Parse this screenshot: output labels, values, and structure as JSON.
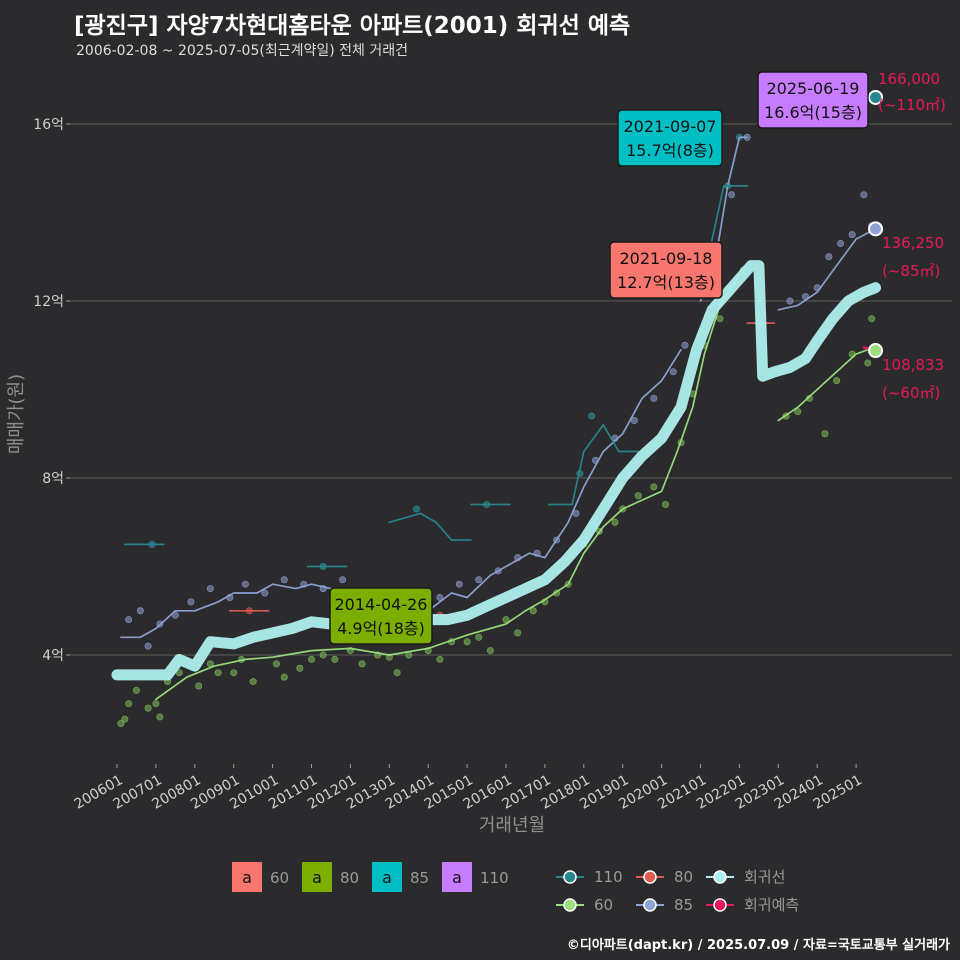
{
  "title": "[광진구] 자양7차현대홈타운 아파트(2001) 회귀선 예측",
  "subtitle": "2006-02-08 ~ 2025-07-05(최근계약일) 전체 거래건",
  "footer": "©디아파트(dapt.kr) / 2025.07.09 / 자료=국토교통부 실거래가",
  "colors": {
    "background": "#2b2b2d",
    "grid": "#5c5c5c",
    "size60": "#f8766d",
    "size80": "#7cae00",
    "size85": "#00bfc4",
    "size110": "#c77cff",
    "line110": "#27868e",
    "line80": "#e05a4f",
    "line60": "#9be07c",
    "line85": "#8fa3d6",
    "regression": "#aeeeee",
    "prediction": "#e8175d"
  },
  "chart_data": {
    "type": "line",
    "xlabel": "거래년월",
    "ylabel": "매매가(원)",
    "x_ticks": [
      "200601",
      "200701",
      "200801",
      "200901",
      "201001",
      "201101",
      "201201",
      "201301",
      "201401",
      "201501",
      "201601",
      "201701",
      "201801",
      "201901",
      "202001",
      "202101",
      "202201",
      "202301",
      "202401",
      "202501"
    ],
    "y_ticks": [
      {
        "value": 4,
        "label": "4억"
      },
      {
        "value": 8,
        "label": "8억"
      },
      {
        "value": 12,
        "label": "12억"
      },
      {
        "value": 16,
        "label": "16억"
      }
    ],
    "xlim": [
      2005.7,
      2026.0
    ],
    "ylim": [
      1.8,
      17.2
    ],
    "y_unit": "억",
    "series": [
      {
        "name": "60",
        "style": "line60",
        "points": [
          [
            2007.0,
            3.0
          ],
          [
            2007.8,
            3.5
          ],
          [
            2008.5,
            3.75
          ],
          [
            2009.3,
            3.9
          ],
          [
            2010.0,
            3.95
          ],
          [
            2011.0,
            4.1
          ],
          [
            2012.0,
            4.15
          ],
          [
            2013.0,
            4.0
          ],
          [
            2014.0,
            4.15
          ],
          [
            2015.0,
            4.45
          ],
          [
            2016.0,
            4.7
          ],
          [
            2016.5,
            5.0
          ],
          [
            2017.0,
            5.25
          ],
          [
            2017.6,
            5.6
          ],
          [
            2018.0,
            6.3
          ],
          [
            2018.5,
            6.9
          ],
          [
            2019.0,
            7.3
          ],
          [
            2019.5,
            7.5
          ],
          [
            2020.0,
            7.7
          ],
          [
            2020.4,
            8.6
          ],
          [
            2020.8,
            9.6
          ],
          [
            2021.1,
            10.8
          ],
          [
            2021.5,
            11.9
          ],
          [
            2022.0,
            12.6
          ],
          [
            2022.2,
            12.6
          ]
        ]
      },
      {
        "name": "60",
        "style": "line60",
        "points": [
          [
            2023.0,
            9.3
          ],
          [
            2023.5,
            9.6
          ],
          [
            2024.0,
            10.0
          ],
          [
            2024.5,
            10.4
          ],
          [
            2025.0,
            10.8
          ],
          [
            2025.3,
            10.9
          ]
        ]
      },
      {
        "name": "85",
        "style": "line85",
        "points": [
          [
            2006.1,
            4.4
          ],
          [
            2006.6,
            4.4
          ],
          [
            2007.0,
            4.6
          ],
          [
            2007.5,
            5.0
          ],
          [
            2008.0,
            5.0
          ],
          [
            2008.6,
            5.2
          ],
          [
            2009.0,
            5.4
          ],
          [
            2009.6,
            5.4
          ],
          [
            2010.0,
            5.6
          ],
          [
            2010.6,
            5.5
          ],
          [
            2011.0,
            5.6
          ],
          [
            2011.5,
            5.5
          ],
          [
            2012.0,
            5.4
          ],
          [
            2012.6,
            5.2
          ],
          [
            2013.0,
            5.0
          ],
          [
            2013.6,
            5.1
          ],
          [
            2014.0,
            5.0
          ],
          [
            2014.6,
            5.4
          ],
          [
            2015.0,
            5.3
          ],
          [
            2015.6,
            5.8
          ],
          [
            2016.0,
            6.0
          ],
          [
            2016.6,
            6.3
          ],
          [
            2017.0,
            6.2
          ],
          [
            2017.6,
            7.0
          ],
          [
            2018.0,
            7.8
          ],
          [
            2018.5,
            8.6
          ],
          [
            2019.0,
            9.0
          ],
          [
            2019.5,
            9.8
          ],
          [
            2020.0,
            10.2
          ],
          [
            2020.5,
            10.9
          ]
        ]
      },
      {
        "name": "85",
        "style": "line85",
        "points": [
          [
            2021.0,
            12.0
          ],
          [
            2021.4,
            13.0
          ],
          [
            2021.7,
            14.6
          ],
          [
            2022.0,
            15.7
          ],
          [
            2022.2,
            15.7
          ]
        ]
      },
      {
        "name": "85",
        "style": "line85",
        "points": [
          [
            2023.0,
            11.8
          ],
          [
            2023.5,
            11.9
          ],
          [
            2024.0,
            12.2
          ],
          [
            2024.5,
            12.8
          ],
          [
            2025.0,
            13.4
          ],
          [
            2025.5,
            13.63
          ]
        ]
      },
      {
        "name": "110",
        "style": "line110",
        "points": [
          [
            2006.2,
            6.5
          ],
          [
            2007.2,
            6.5
          ]
        ]
      },
      {
        "name": "110",
        "style": "line110",
        "points": [
          [
            2010.9,
            6.0
          ],
          [
            2011.9,
            6.0
          ]
        ]
      },
      {
        "name": "110",
        "style": "line110",
        "points": [
          [
            2013.0,
            7.0
          ],
          [
            2013.8,
            7.2
          ],
          [
            2014.2,
            7.0
          ],
          [
            2014.6,
            6.6
          ],
          [
            2015.1,
            6.6
          ]
        ]
      },
      {
        "name": "110",
        "style": "line110",
        "points": [
          [
            2015.1,
            7.4
          ],
          [
            2016.1,
            7.4
          ]
        ]
      },
      {
        "name": "110",
        "style": "line110",
        "points": [
          [
            2017.1,
            7.4
          ],
          [
            2017.7,
            7.4
          ],
          [
            2018.0,
            8.6
          ],
          [
            2018.5,
            9.2
          ],
          [
            2018.9,
            8.6
          ],
          [
            2019.4,
            8.6
          ]
        ]
      },
      {
        "name": "110",
        "style": "line110",
        "points": [
          [
            2021.2,
            13.0
          ],
          [
            2021.6,
            14.6
          ],
          [
            2022.2,
            14.6
          ]
        ]
      },
      {
        "name": "80",
        "style": "line80",
        "points": [
          [
            2008.9,
            5.0
          ],
          [
            2009.9,
            5.0
          ]
        ]
      },
      {
        "name": "80",
        "style": "line80",
        "points": [
          [
            2014.0,
            4.9
          ],
          [
            2014.6,
            4.9
          ]
        ]
      },
      {
        "name": "80",
        "style": "line80",
        "points": [
          [
            2022.2,
            11.5
          ],
          [
            2022.9,
            11.5
          ]
        ]
      },
      {
        "name": "회귀선",
        "style": "regression",
        "points": [
          [
            2006.0,
            3.55
          ],
          [
            2007.3,
            3.55
          ],
          [
            2007.6,
            3.9
          ],
          [
            2008.0,
            3.75
          ],
          [
            2008.4,
            4.3
          ],
          [
            2009.0,
            4.25
          ],
          [
            2009.5,
            4.4
          ],
          [
            2010.0,
            4.5
          ],
          [
            2010.5,
            4.6
          ],
          [
            2011.0,
            4.75
          ],
          [
            2011.5,
            4.7
          ],
          [
            2012.0,
            4.65
          ],
          [
            2012.5,
            4.6
          ],
          [
            2013.0,
            4.6
          ],
          [
            2013.5,
            4.75
          ],
          [
            2014.0,
            4.8
          ],
          [
            2014.5,
            4.8
          ],
          [
            2015.0,
            4.9
          ],
          [
            2015.5,
            5.1
          ],
          [
            2016.0,
            5.3
          ],
          [
            2016.5,
            5.5
          ],
          [
            2017.0,
            5.7
          ],
          [
            2017.5,
            6.1
          ],
          [
            2018.0,
            6.6
          ],
          [
            2018.5,
            7.3
          ],
          [
            2019.0,
            8.0
          ],
          [
            2019.5,
            8.5
          ],
          [
            2020.0,
            8.9
          ],
          [
            2020.5,
            9.6
          ],
          [
            2020.9,
            10.9
          ],
          [
            2021.3,
            11.8
          ],
          [
            2021.7,
            12.2
          ],
          [
            2022.0,
            12.5
          ],
          [
            2022.3,
            12.8
          ],
          [
            2022.5,
            12.8
          ],
          [
            2022.6,
            10.3
          ],
          [
            2022.9,
            10.4
          ],
          [
            2023.3,
            10.5
          ],
          [
            2023.7,
            10.7
          ],
          [
            2024.0,
            11.1
          ],
          [
            2024.4,
            11.6
          ],
          [
            2024.8,
            12.0
          ],
          [
            2025.2,
            12.2
          ],
          [
            2025.5,
            12.3
          ]
        ]
      },
      {
        "name": "회귀예측",
        "style": "prediction",
        "points": [
          [
            2025.2,
            10.95
          ],
          [
            2025.5,
            10.88
          ]
        ]
      }
    ],
    "scatter": {
      "60": [
        [
          2006.1,
          2.45
        ],
        [
          2006.2,
          2.55
        ],
        [
          2006.3,
          2.9
        ],
        [
          2006.5,
          3.2
        ],
        [
          2006.8,
          2.8
        ],
        [
          2007.0,
          2.9
        ],
        [
          2007.1,
          2.6
        ],
        [
          2007.3,
          3.4
        ],
        [
          2007.6,
          3.6
        ],
        [
          2008.1,
          3.3
        ],
        [
          2008.4,
          3.8
        ],
        [
          2008.6,
          3.6
        ],
        [
          2009.0,
          3.6
        ],
        [
          2009.2,
          3.9
        ],
        [
          2009.5,
          3.4
        ],
        [
          2010.1,
          3.8
        ],
        [
          2010.3,
          3.5
        ],
        [
          2010.7,
          3.7
        ],
        [
          2011.0,
          3.9
        ],
        [
          2011.3,
          4.0
        ],
        [
          2011.6,
          3.9
        ],
        [
          2012.0,
          4.1
        ],
        [
          2012.3,
          3.8
        ],
        [
          2012.7,
          4.0
        ],
        [
          2013.0,
          3.95
        ],
        [
          2013.2,
          3.6
        ],
        [
          2013.5,
          4.0
        ],
        [
          2014.0,
          4.1
        ],
        [
          2014.3,
          3.9
        ],
        [
          2014.6,
          4.3
        ],
        [
          2015.0,
          4.3
        ],
        [
          2015.3,
          4.4
        ],
        [
          2015.6,
          4.1
        ],
        [
          2016.0,
          4.8
        ],
        [
          2016.3,
          4.5
        ],
        [
          2016.7,
          5.0
        ],
        [
          2017.0,
          5.2
        ],
        [
          2017.3,
          5.4
        ],
        [
          2017.6,
          5.6
        ],
        [
          2018.0,
          6.5
        ],
        [
          2018.4,
          6.8
        ],
        [
          2018.8,
          7.0
        ],
        [
          2019.0,
          7.3
        ],
        [
          2019.4,
          7.6
        ],
        [
          2019.8,
          7.8
        ],
        [
          2020.1,
          7.4
        ],
        [
          2020.5,
          8.8
        ],
        [
          2020.8,
          9.9
        ],
        [
          2021.1,
          11.0
        ],
        [
          2021.5,
          11.6
        ],
        [
          2021.8,
          12.3
        ],
        [
          2022.1,
          12.7
        ],
        [
          2023.2,
          9.4
        ],
        [
          2023.5,
          9.5
        ],
        [
          2023.8,
          9.8
        ],
        [
          2024.2,
          9.0
        ],
        [
          2024.5,
          10.2
        ],
        [
          2024.9,
          10.8
        ],
        [
          2025.3,
          10.6
        ],
        [
          2025.4,
          11.6
        ]
      ],
      "85": [
        [
          2006.3,
          4.8
        ],
        [
          2006.6,
          5.0
        ],
        [
          2006.8,
          4.2
        ],
        [
          2007.1,
          4.7
        ],
        [
          2007.5,
          4.9
        ],
        [
          2007.9,
          5.2
        ],
        [
          2008.4,
          5.5
        ],
        [
          2008.9,
          5.3
        ],
        [
          2009.3,
          5.6
        ],
        [
          2009.8,
          5.4
        ],
        [
          2010.3,
          5.7
        ],
        [
          2010.8,
          5.6
        ],
        [
          2011.3,
          5.5
        ],
        [
          2011.8,
          5.7
        ],
        [
          2012.3,
          5.1
        ],
        [
          2012.8,
          5.0
        ],
        [
          2013.3,
          5.2
        ],
        [
          2013.8,
          5.0
        ],
        [
          2014.3,
          5.3
        ],
        [
          2014.8,
          5.6
        ],
        [
          2015.3,
          5.7
        ],
        [
          2015.8,
          5.9
        ],
        [
          2016.3,
          6.2
        ],
        [
          2016.8,
          6.3
        ],
        [
          2017.3,
          6.6
        ],
        [
          2017.8,
          7.2
        ],
        [
          2018.3,
          8.4
        ],
        [
          2018.8,
          8.9
        ],
        [
          2019.3,
          9.3
        ],
        [
          2019.8,
          9.8
        ],
        [
          2020.3,
          10.4
        ],
        [
          2020.6,
          11.0
        ],
        [
          2021.4,
          13.1
        ],
        [
          2021.8,
          14.4
        ],
        [
          2022.2,
          15.7
        ],
        [
          2023.3,
          12.0
        ],
        [
          2023.7,
          12.1
        ],
        [
          2024.0,
          12.3
        ],
        [
          2024.3,
          13.0
        ],
        [
          2024.6,
          13.3
        ],
        [
          2024.9,
          13.5
        ],
        [
          2025.2,
          14.4
        ],
        [
          2025.4,
          13.7
        ]
      ],
      "110": [
        [
          2006.9,
          6.5
        ],
        [
          2011.3,
          6.0
        ],
        [
          2013.7,
          7.3
        ],
        [
          2015.5,
          7.4
        ],
        [
          2017.9,
          8.1
        ],
        [
          2018.2,
          9.4
        ],
        [
          2021.7,
          14.6
        ],
        [
          2022.0,
          15.7
        ]
      ],
      "80": [
        [
          2009.4,
          5.0
        ],
        [
          2014.3,
          4.9
        ],
        [
          2022.5,
          11.5
        ]
      ]
    },
    "end_markers": [
      {
        "name": "110",
        "x": 2025.5,
        "y": 16.6
      },
      {
        "name": "85",
        "x": 2025.5,
        "y": 13.63
      },
      {
        "name": "60",
        "x": 2025.5,
        "y": 10.88
      }
    ],
    "callouts": [
      {
        "date": "2025-06-19",
        "value": "16.6억(15층)",
        "size": "110",
        "x": 2025.46,
        "y": 16.6
      },
      {
        "date": "2021-09-07",
        "value": "15.7억(8층)",
        "size": "85",
        "x": 2021.68,
        "y": 15.7
      },
      {
        "date": "2021-09-18",
        "value": "12.7억(13층)",
        "size": "60",
        "x": 2021.71,
        "y": 12.7
      },
      {
        "date": "2014-04-26",
        "value": "4.9억(18층)",
        "size": "80",
        "x": 2014.32,
        "y": 4.9
      }
    ],
    "predictions": [
      {
        "value": "166,000",
        "area": "(~110㎡)",
        "y": 16.6
      },
      {
        "value": "136,250",
        "area": "(~85㎡)",
        "y": 13.63
      },
      {
        "value": "108,833",
        "area": "(~60㎡)",
        "y": 10.88
      }
    ],
    "legend_size": {
      "swatch_text": "a",
      "items": [
        "60",
        "80",
        "85",
        "110"
      ]
    },
    "legend_line": {
      "items": [
        "110",
        "80",
        "회귀선",
        "60",
        "85",
        "회귀예측"
      ]
    },
    "legend_position": "bottom"
  }
}
